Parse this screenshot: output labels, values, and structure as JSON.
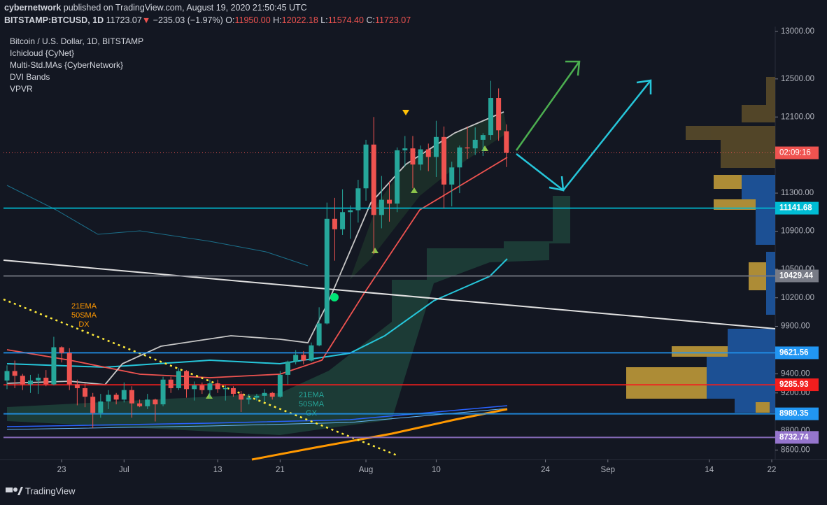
{
  "header": {
    "author": "cybernetwork",
    "published": "published on TradingView.com, August 19, 2020 21:50:45 UTC",
    "symbol": "BITSTAMP:BTCUSD, 1D",
    "last": "11723.07",
    "arrow": "▼",
    "change": "−235.03 (−1.97%)",
    "o_label": "O:",
    "o": "11950.00",
    "h_label": "H:",
    "h": "12022.18",
    "l_label": "L:",
    "l": "11574.40",
    "c_label": "C:",
    "c": "11723.07"
  },
  "legend": [
    "Bitcoin / U.S. Dollar, 1D, BITSTAMP",
    "Ichicloud {CyNet}",
    "Multi-Std.MAs {CyberNetwork}",
    "DVI Bands",
    "VPVR"
  ],
  "annotations": {
    "dx": [
      "21EMA",
      "50SMA",
      "DX"
    ],
    "gx": [
      "21EMA",
      "50SMA",
      "GX"
    ]
  },
  "footer": "TradingView",
  "chart_data": {
    "type": "candlestick",
    "up_color": "#26a69a",
    "down_color": "#ef5350",
    "x": [
      "2020-06-16",
      "2020-06-17",
      "2020-06-18",
      "2020-06-19",
      "2020-06-20",
      "2020-06-21",
      "2020-06-22",
      "2020-06-23",
      "2020-06-24",
      "2020-06-25",
      "2020-06-26",
      "2020-06-27",
      "2020-06-28",
      "2020-06-29",
      "2020-06-30",
      "2020-07-01",
      "2020-07-02",
      "2020-07-03",
      "2020-07-04",
      "2020-07-05",
      "2020-07-06",
      "2020-07-07",
      "2020-07-08",
      "2020-07-09",
      "2020-07-10",
      "2020-07-11",
      "2020-07-12",
      "2020-07-13",
      "2020-07-14",
      "2020-07-15",
      "2020-07-16",
      "2020-07-17",
      "2020-07-18",
      "2020-07-19",
      "2020-07-20",
      "2020-07-21",
      "2020-07-22",
      "2020-07-23",
      "2020-07-24",
      "2020-07-25",
      "2020-07-26",
      "2020-07-27",
      "2020-07-28",
      "2020-07-29",
      "2020-07-30",
      "2020-07-31",
      "2020-08-01",
      "2020-08-02",
      "2020-08-03",
      "2020-08-04",
      "2020-08-05",
      "2020-08-06",
      "2020-08-07",
      "2020-08-08",
      "2020-08-09",
      "2020-08-10",
      "2020-08-11",
      "2020-08-12",
      "2020-08-13",
      "2020-08-14",
      "2020-08-15",
      "2020-08-16",
      "2020-08-17",
      "2020-08-18",
      "2020-08-19"
    ],
    "candles": [
      [
        9330,
        9490,
        9240,
        9430
      ],
      [
        9430,
        9540,
        9250,
        9380
      ],
      [
        9380,
        9400,
        9230,
        9290
      ],
      [
        9290,
        9390,
        9200,
        9330
      ],
      [
        9330,
        9400,
        9190,
        9360
      ],
      [
        9360,
        9440,
        9270,
        9290
      ],
      [
        9290,
        9790,
        9280,
        9680
      ],
      [
        9680,
        9690,
        9520,
        9620
      ],
      [
        9620,
        9670,
        9230,
        9290
      ],
      [
        9290,
        9340,
        9070,
        9250
      ],
      [
        9250,
        9300,
        9050,
        9160
      ],
      [
        9160,
        9200,
        8830,
        8990
      ],
      [
        8990,
        9190,
        8940,
        9110
      ],
      [
        9110,
        9230,
        9030,
        9180
      ],
      [
        9180,
        9200,
        9080,
        9130
      ],
      [
        9130,
        9310,
        9100,
        9230
      ],
      [
        9230,
        9270,
        8940,
        9090
      ],
      [
        9090,
        9130,
        9050,
        9060
      ],
      [
        9060,
        9190,
        9030,
        9130
      ],
      [
        9130,
        9140,
        8900,
        9080
      ],
      [
        9080,
        9370,
        9060,
        9340
      ],
      [
        9340,
        9370,
        9200,
        9250
      ],
      [
        9250,
        9460,
        9230,
        9430
      ],
      [
        9430,
        9440,
        9150,
        9240
      ],
      [
        9240,
        9320,
        9120,
        9280
      ],
      [
        9280,
        9310,
        9190,
        9230
      ],
      [
        9230,
        9340,
        9150,
        9300
      ],
      [
        9300,
        9340,
        9200,
        9240
      ],
      [
        9240,
        9280,
        9120,
        9250
      ],
      [
        9250,
        9270,
        9160,
        9190
      ],
      [
        9190,
        9220,
        9000,
        9130
      ],
      [
        9130,
        9190,
        9080,
        9150
      ],
      [
        9150,
        9190,
        9120,
        9170
      ],
      [
        9170,
        9240,
        9110,
        9200
      ],
      [
        9200,
        9210,
        9130,
        9160
      ],
      [
        9160,
        9430,
        9150,
        9390
      ],
      [
        9390,
        9540,
        9290,
        9530
      ],
      [
        9530,
        9650,
        9500,
        9600
      ],
      [
        9600,
        9640,
        9500,
        9540
      ],
      [
        9540,
        9730,
        9530,
        9700
      ],
      [
        9700,
        10100,
        9690,
        9930
      ],
      [
        9930,
        11200,
        9920,
        11030
      ],
      [
        11030,
        11250,
        10590,
        10920
      ],
      [
        10920,
        11340,
        10860,
        11100
      ],
      [
        11100,
        11170,
        10820,
        11120
      ],
      [
        11120,
        11440,
        10990,
        11350
      ],
      [
        11350,
        11860,
        11220,
        11810
      ],
      [
        11810,
        12100,
        10660,
        11070
      ],
      [
        11070,
        11480,
        10930,
        11230
      ],
      [
        11230,
        11420,
        11000,
        11190
      ],
      [
        11190,
        11780,
        11100,
        11750
      ],
      [
        11750,
        11900,
        11580,
        11770
      ],
      [
        11770,
        11900,
        11350,
        11600
      ],
      [
        11600,
        11800,
        11540,
        11760
      ],
      [
        11760,
        11820,
        11530,
        11680
      ],
      [
        11680,
        12060,
        11470,
        11890
      ],
      [
        11890,
        12000,
        11140,
        11390
      ],
      [
        11390,
        11630,
        11160,
        11570
      ],
      [
        11570,
        11800,
        11300,
        11780
      ],
      [
        11780,
        12000,
        11660,
        11770
      ],
      [
        11770,
        11990,
        11700,
        11860
      ],
      [
        11860,
        11930,
        11690,
        11910
      ],
      [
        11910,
        12480,
        11860,
        12300
      ],
      [
        12300,
        12400,
        11850,
        11960
      ],
      [
        11950,
        12022.18,
        11574.4,
        11723.07
      ]
    ],
    "xlim": [
      "2020-06-16",
      "2020-09-22"
    ],
    "xticks": [
      {
        "value": "2020-06-23",
        "label": "23"
      },
      {
        "value": "2020-07-01",
        "label": "Jul"
      },
      {
        "value": "2020-07-13",
        "label": "13"
      },
      {
        "value": "2020-07-21",
        "label": "21"
      },
      {
        "value": "2020-08-01",
        "label": "Aug"
      },
      {
        "value": "2020-08-10",
        "label": "10"
      },
      {
        "value": "2020-08-24",
        "label": "24"
      },
      {
        "value": "2020-09-01",
        "label": "Sep"
      },
      {
        "value": "2020-09-14",
        "label": "14"
      },
      {
        "value": "2020-09-22",
        "label": "22"
      }
    ],
    "ylim": [
      8500,
      13050
    ],
    "yticks": [
      {
        "value": 13000,
        "label": "13000.00"
      },
      {
        "value": 12500,
        "label": "12500.00"
      },
      {
        "value": 12100,
        "label": "12100.00"
      },
      {
        "value": 11300,
        "label": "11300.00"
      },
      {
        "value": 10900,
        "label": "10900.00"
      },
      {
        "value": 10500,
        "label": "10500.00"
      },
      {
        "value": 10200,
        "label": "10200.00"
      },
      {
        "value": 9900,
        "label": "9900.00"
      },
      {
        "value": 9400,
        "label": "9400.00"
      },
      {
        "value": 9200,
        "label": "9200.00"
      },
      {
        "value": 8800,
        "label": "8800.00"
      },
      {
        "value": 8600,
        "label": "8600.00"
      }
    ],
    "grid": false,
    "countdown": "02:09:16",
    "countdown_color": "#ef5350",
    "levels": {
      "values": [
        11141.68,
        10429.44,
        9621.56,
        9285.93,
        8980.35,
        8732.74
      ],
      "colors": [
        "#00bcd4",
        "#787b86",
        "#2196f3",
        "#f21e1e",
        "#2196f3",
        "#9575cd"
      ]
    }
  }
}
